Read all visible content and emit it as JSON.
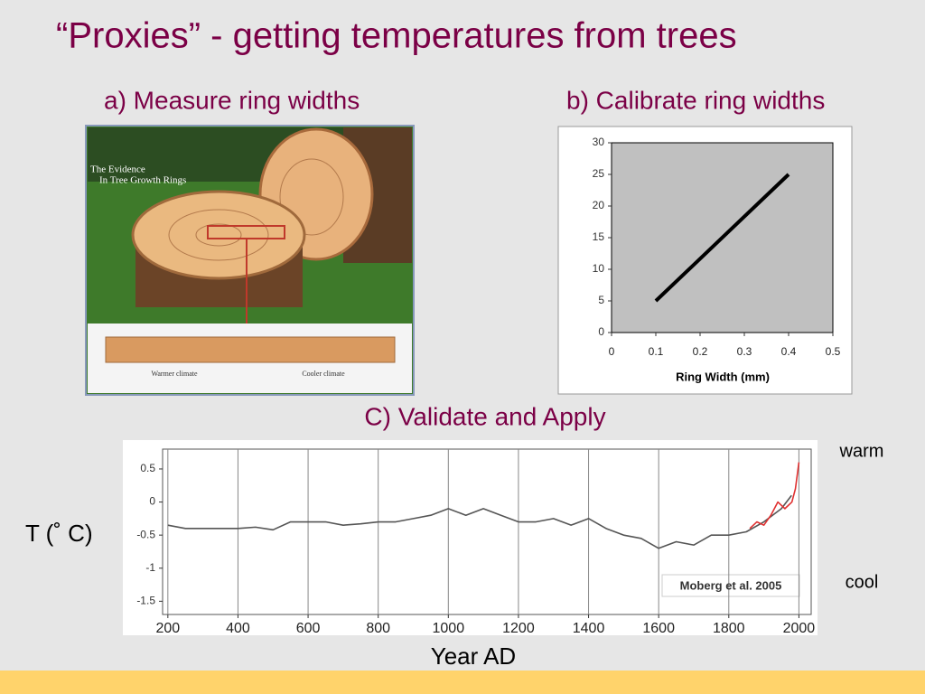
{
  "slide": {
    "title": "“Proxies” - getting temperatures from trees",
    "heading_a": "a) Measure ring widths",
    "heading_b": "b) Calibrate ring widths",
    "heading_c": "C) Validate and Apply",
    "image_caption": [
      "The Evidence",
      "In Tree Growth Rings"
    ],
    "image_warmer": "Warmer climate",
    "image_cooler": "Cooler climate",
    "warm": "warm",
    "cool": "cool"
  },
  "chart_data": [
    {
      "type": "line",
      "x_label": "Ring Width (mm)",
      "series": [
        {
          "color": "#000000",
          "x": [
            0.1,
            0.4
          ],
          "values": [
            5,
            25
          ]
        }
      ],
      "xlim": [
        0,
        0.5
      ],
      "xticks": [
        0,
        0.1,
        0.2,
        0.3,
        0.4,
        0.5
      ],
      "ylim": [
        0,
        30
      ],
      "yticks": [
        0,
        5,
        10,
        15,
        20,
        25,
        30
      ],
      "grid": false
    },
    {
      "type": "line",
      "x_label": "Year AD",
      "y_label": "T (˚ C)",
      "annotation": "Moberg et al. 2005",
      "series": [
        {
          "color": "#555555",
          "x": [
            200,
            250,
            300,
            350,
            400,
            450,
            500,
            550,
            600,
            650,
            700,
            750,
            800,
            850,
            900,
            950,
            1000,
            1050,
            1100,
            1150,
            1200,
            1250,
            1300,
            1350,
            1400,
            1450,
            1500,
            1550,
            1600,
            1650,
            1700,
            1750,
            1800,
            1850,
            1900,
            1950,
            1979
          ],
          "values": [
            -0.35,
            -0.4,
            -0.4,
            -0.4,
            -0.4,
            -0.38,
            -0.42,
            -0.3,
            -0.3,
            -0.3,
            -0.35,
            -0.33,
            -0.3,
            -0.3,
            -0.25,
            -0.2,
            -0.1,
            -0.2,
            -0.1,
            -0.2,
            -0.3,
            -0.3,
            -0.25,
            -0.35,
            -0.25,
            -0.4,
            -0.5,
            -0.55,
            -0.7,
            -0.6,
            -0.65,
            -0.5,
            -0.5,
            -0.45,
            -0.3,
            -0.1,
            0.1
          ]
        },
        {
          "color": "#e03030",
          "x": [
            1860,
            1880,
            1900,
            1920,
            1940,
            1960,
            1980,
            1990,
            2000
          ],
          "values": [
            -0.4,
            -0.3,
            -0.35,
            -0.2,
            0.0,
            -0.1,
            0.0,
            0.2,
            0.6
          ]
        }
      ],
      "xlim": [
        185,
        2035
      ],
      "xticks": [
        200,
        400,
        600,
        800,
        1000,
        1200,
        1400,
        1600,
        1800,
        2000
      ],
      "ylim": [
        -1.7,
        0.8
      ],
      "yticks": [
        0.5,
        0,
        -0.5,
        -1,
        -1.5
      ],
      "grid": "x"
    }
  ]
}
